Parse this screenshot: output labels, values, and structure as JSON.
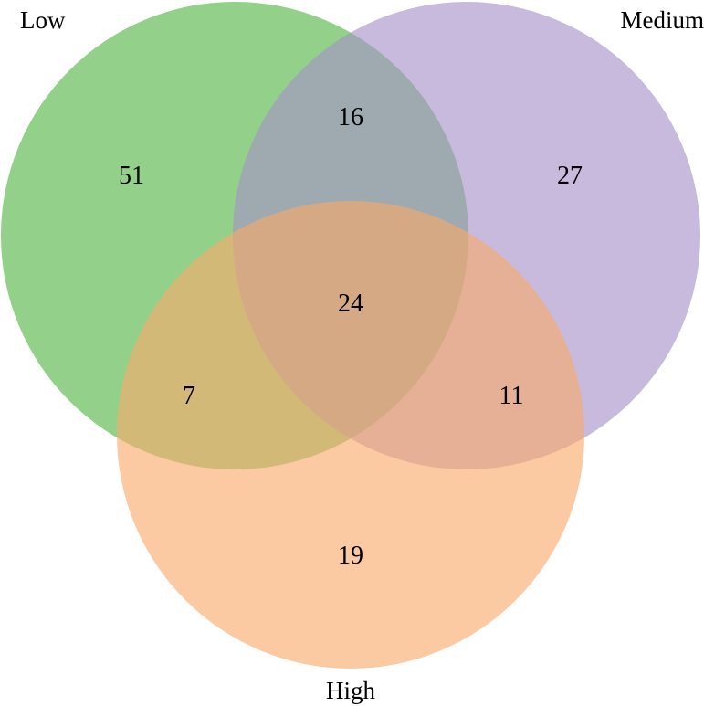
{
  "venn": {
    "sets": [
      {
        "key": "low",
        "label": "Low",
        "color": "#6ABF5E"
      },
      {
        "key": "medium",
        "label": "Medium",
        "color": "#A68FC7"
      },
      {
        "key": "high",
        "label": "High",
        "color": "#F8AA6A"
      }
    ],
    "regions": {
      "low_only": "51",
      "medium_only": "27",
      "high_only": "19",
      "low_medium": "16",
      "low_high": "7",
      "medium_high": "11",
      "all_three": "24"
    }
  }
}
